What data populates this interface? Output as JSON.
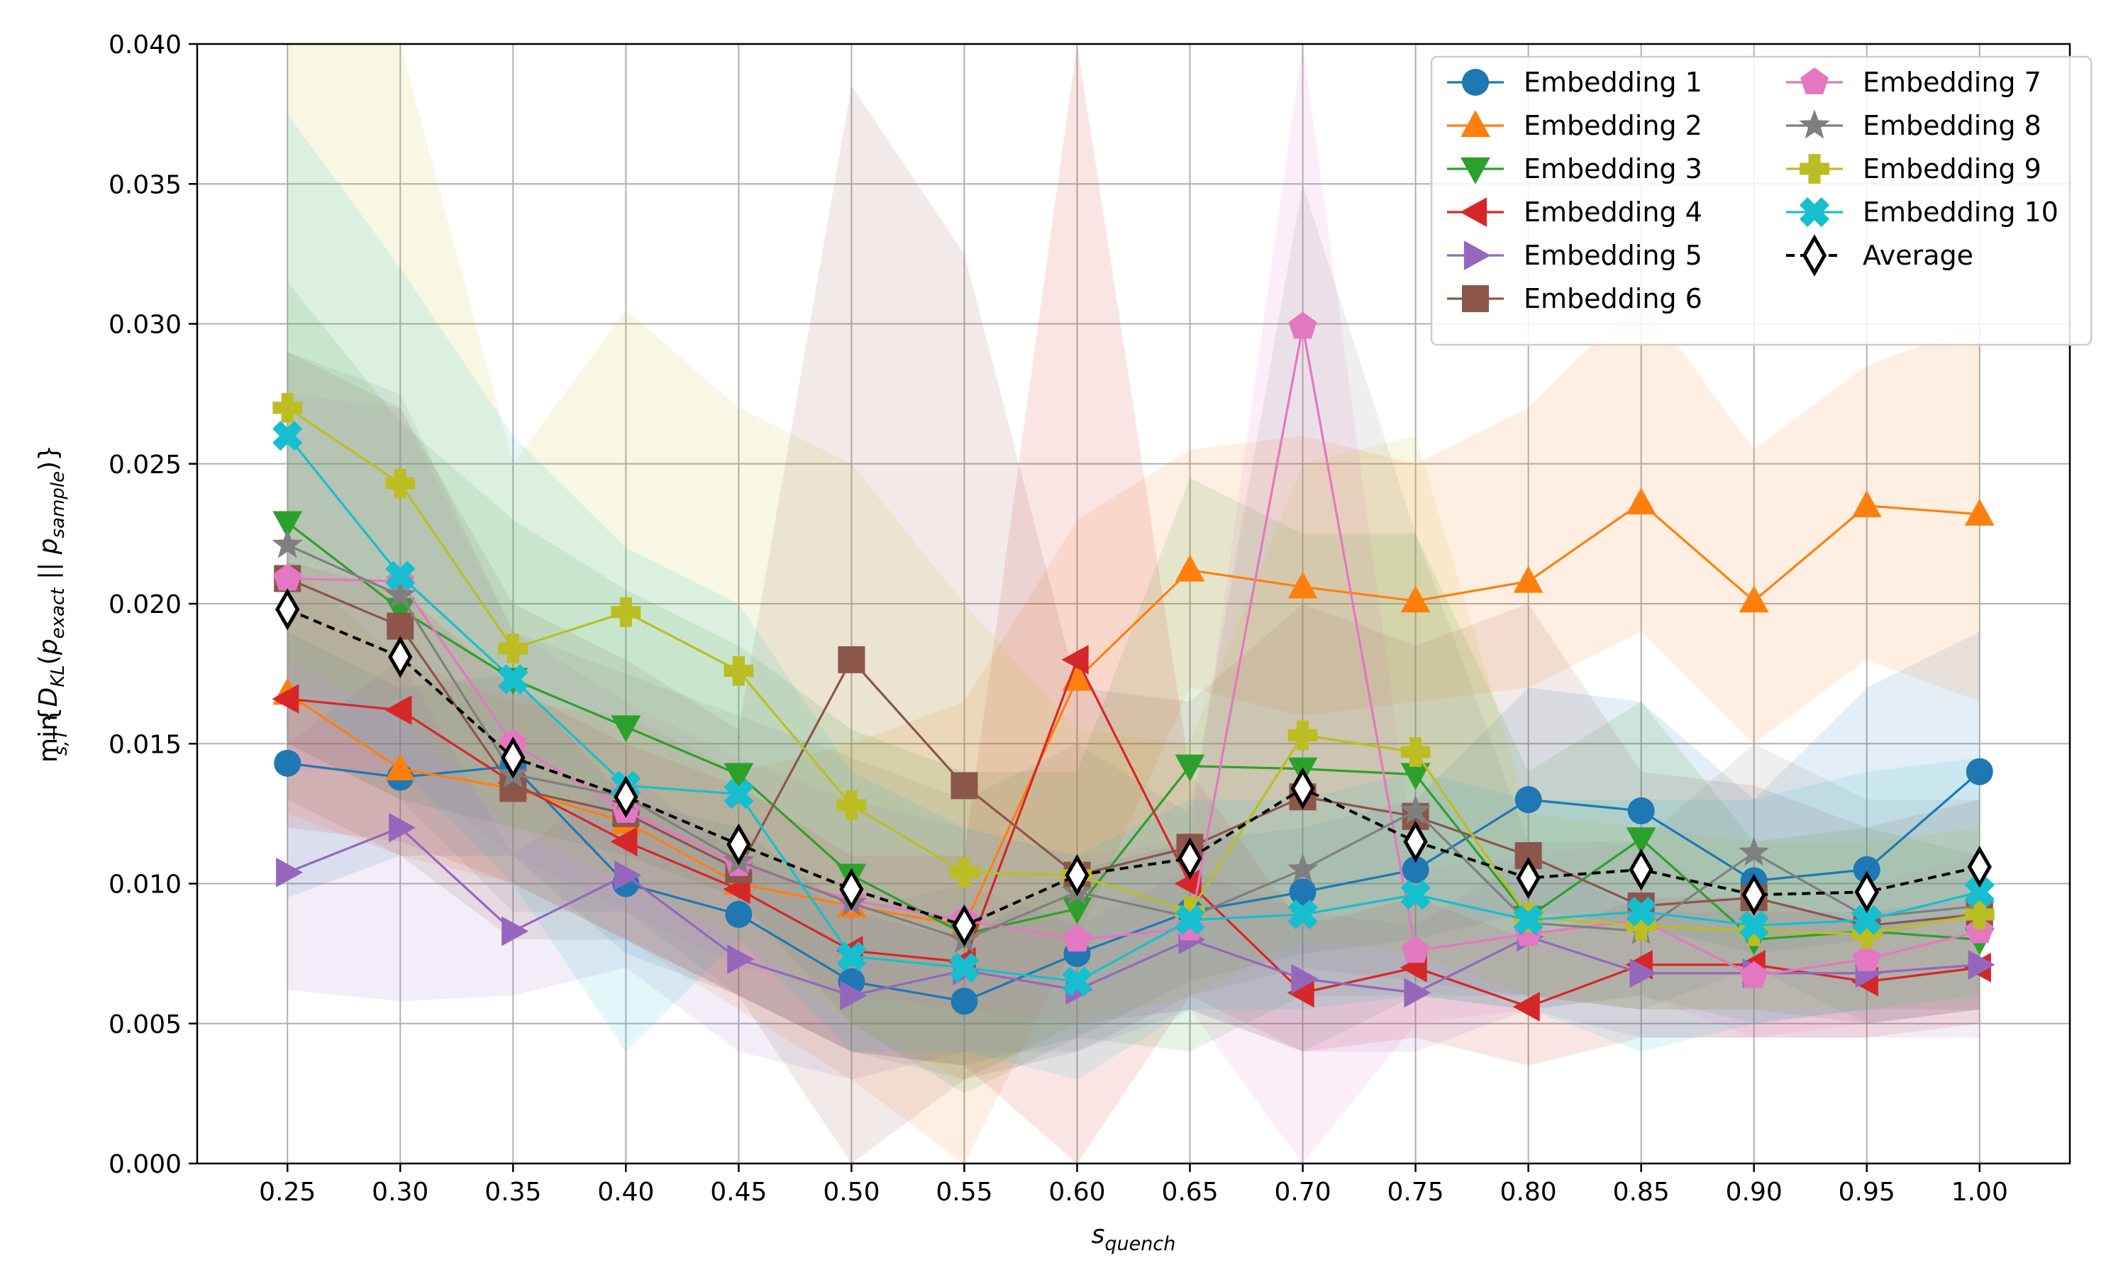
{
  "chart_data": {
    "type": "line",
    "xlabel": "s_quench",
    "ylabel": "min_{s,T}{D_KL(p_exact || p_sample)}",
    "x": [
      0.25,
      0.3,
      0.35,
      0.4,
      0.45,
      0.5,
      0.55,
      0.6,
      0.65,
      0.7,
      0.75,
      0.8,
      0.85,
      0.9,
      0.95,
      1.0
    ],
    "x_tick_labels": [
      "0.25",
      "0.30",
      "0.35",
      "0.40",
      "0.45",
      "0.50",
      "0.55",
      "0.60",
      "0.65",
      "0.70",
      "0.75",
      "0.80",
      "0.85",
      "0.90",
      "0.95",
      "1.00"
    ],
    "y_ticks": [
      0.0,
      0.005,
      0.01,
      0.015,
      0.02,
      0.025,
      0.03,
      0.035,
      0.04
    ],
    "y_tick_labels": [
      "0.000",
      "0.005",
      "0.010",
      "0.015",
      "0.020",
      "0.025",
      "0.030",
      "0.035",
      "0.040"
    ],
    "xlim": [
      0.21,
      1.04
    ],
    "ylim": [
      0.0,
      0.04
    ],
    "grid": true,
    "legend_position": "top-right",
    "legend_columns": 2,
    "series": [
      {
        "name": "Embedding 1",
        "color": "#1f77b4",
        "marker": "circle",
        "values": [
          0.0143,
          0.0138,
          0.0142,
          0.01,
          0.0089,
          0.0065,
          0.0058,
          0.0075,
          0.009,
          0.0097,
          0.0105,
          0.013,
          0.0126,
          0.0101,
          0.0105,
          0.014
        ],
        "lower": [
          0.0095,
          0.011,
          0.011,
          0.0075,
          0.006,
          0.004,
          0.0035,
          0.0045,
          0.0065,
          0.0075,
          0.008,
          0.009,
          0.0085,
          0.0075,
          0.008,
          0.009
        ],
        "upper": [
          0.019,
          0.017,
          0.0175,
          0.013,
          0.012,
          0.009,
          0.008,
          0.0105,
          0.0115,
          0.012,
          0.013,
          0.017,
          0.0165,
          0.013,
          0.017,
          0.019
        ]
      },
      {
        "name": "Embedding 2",
        "color": "#ff7f0e",
        "marker": "triangle-up",
        "values": [
          0.0168,
          0.0141,
          0.0134,
          0.0122,
          0.01,
          0.0092,
          0.0085,
          0.0173,
          0.0212,
          0.0206,
          0.0201,
          0.0208,
          0.0236,
          0.0201,
          0.0235,
          0.0232
        ],
        "lower": [
          0.0125,
          0.011,
          0.01,
          0.008,
          0.0055,
          0.003,
          0.0,
          0.008,
          0.017,
          0.016,
          0.0165,
          0.017,
          0.019,
          0.015,
          0.018,
          0.0165
        ],
        "upper": [
          0.0215,
          0.018,
          0.0165,
          0.016,
          0.014,
          0.015,
          0.0165,
          0.023,
          0.0255,
          0.026,
          0.025,
          0.027,
          0.031,
          0.0255,
          0.0285,
          0.03
        ]
      },
      {
        "name": "Embedding 3",
        "color": "#2ca02c",
        "marker": "triangle-down",
        "values": [
          0.0229,
          0.0198,
          0.0173,
          0.0156,
          0.0139,
          0.0103,
          0.0082,
          0.0091,
          0.0142,
          0.0141,
          0.0139,
          0.0088,
          0.0116,
          0.008,
          0.0083,
          0.008
        ],
        "lower": [
          0.015,
          0.013,
          0.012,
          0.011,
          0.0095,
          0.005,
          0.0025,
          0.0045,
          0.004,
          0.006,
          0.006,
          0.0055,
          0.006,
          0.005,
          0.0055,
          0.0055
        ],
        "upper": [
          0.0315,
          0.0265,
          0.023,
          0.0205,
          0.0185,
          0.0155,
          0.014,
          0.014,
          0.0245,
          0.0225,
          0.0225,
          0.014,
          0.0165,
          0.0115,
          0.012,
          0.011
        ]
      },
      {
        "name": "Embedding 4",
        "color": "#d62728",
        "marker": "triangle-left",
        "values": [
          0.0166,
          0.0162,
          0.0136,
          0.0115,
          0.0098,
          0.0076,
          0.0072,
          0.018,
          0.01,
          0.0061,
          0.007,
          0.0056,
          0.0071,
          0.0071,
          0.0065,
          0.007
        ],
        "lower": [
          0.012,
          0.0115,
          0.01,
          0.008,
          0.006,
          0.004,
          0.0035,
          0.0,
          0.006,
          0.004,
          0.0045,
          0.0035,
          0.0045,
          0.0045,
          0.0045,
          0.005
        ],
        "upper": [
          0.0215,
          0.0205,
          0.017,
          0.015,
          0.0135,
          0.011,
          0.011,
          0.04,
          0.014,
          0.0085,
          0.0095,
          0.008,
          0.0095,
          0.0095,
          0.0085,
          0.009
        ]
      },
      {
        "name": "Embedding 5",
        "color": "#9467bd",
        "marker": "triangle-right",
        "values": [
          0.0104,
          0.012,
          0.0083,
          0.0103,
          0.0073,
          0.006,
          0.0069,
          0.0062,
          0.008,
          0.0066,
          0.0061,
          0.0081,
          0.0068,
          0.0068,
          0.0068,
          0.0071
        ],
        "lower": [
          0.0062,
          0.0058,
          0.006,
          0.007,
          0.004,
          0.003,
          0.004,
          0.004,
          0.0055,
          0.004,
          0.004,
          0.0055,
          0.0045,
          0.0045,
          0.0045,
          0.0045
        ],
        "upper": [
          0.015,
          0.018,
          0.011,
          0.014,
          0.011,
          0.009,
          0.01,
          0.0085,
          0.0105,
          0.009,
          0.0085,
          0.011,
          0.009,
          0.009,
          0.009,
          0.0095
        ]
      },
      {
        "name": "Embedding 6",
        "color": "#8c564b",
        "marker": "square",
        "values": [
          0.0209,
          0.0192,
          0.0134,
          0.0125,
          0.0105,
          0.018,
          0.0135,
          0.0103,
          0.0113,
          0.0131,
          0.0124,
          0.011,
          0.0092,
          0.0095,
          0.0085,
          0.0089
        ],
        "lower": [
          0.013,
          0.011,
          0.008,
          0.008,
          0.006,
          0.0,
          0.003,
          0.004,
          0.006,
          0.007,
          0.0065,
          0.006,
          0.0055,
          0.0055,
          0.005,
          0.0055
        ],
        "upper": [
          0.029,
          0.027,
          0.02,
          0.018,
          0.0155,
          0.0385,
          0.0325,
          0.017,
          0.0165,
          0.02,
          0.0185,
          0.02,
          0.014,
          0.0135,
          0.012,
          0.013
        ]
      },
      {
        "name": "Embedding 7",
        "color": "#e377c2",
        "marker": "pentagon",
        "values": [
          0.0209,
          0.0208,
          0.015,
          0.0126,
          0.0107,
          0.0094,
          0.0087,
          0.008,
          0.0084,
          0.0299,
          0.0076,
          0.0082,
          0.0087,
          0.0067,
          0.0073,
          0.0083
        ],
        "lower": [
          0.014,
          0.014,
          0.011,
          0.009,
          0.007,
          0.006,
          0.0055,
          0.005,
          0.0055,
          0.0,
          0.005,
          0.0055,
          0.006,
          0.0045,
          0.005,
          0.0055
        ],
        "upper": [
          0.0275,
          0.027,
          0.019,
          0.0165,
          0.0145,
          0.013,
          0.012,
          0.011,
          0.0115,
          0.04,
          0.0105,
          0.011,
          0.0115,
          0.009,
          0.01,
          0.011
        ]
      },
      {
        "name": "Embedding 8",
        "color": "#7f7f7f",
        "marker": "star",
        "values": [
          0.0221,
          0.0203,
          0.0139,
          0.0131,
          0.0108,
          0.0093,
          0.008,
          0.0097,
          0.0088,
          0.0105,
          0.0126,
          0.0086,
          0.0083,
          0.0111,
          0.0088,
          0.0092
        ],
        "lower": [
          0.015,
          0.013,
          0.009,
          0.009,
          0.006,
          0.004,
          0.003,
          0.005,
          0.0055,
          0.004,
          0.006,
          0.006,
          0.0055,
          0.007,
          0.005,
          0.0055
        ],
        "upper": [
          0.029,
          0.0275,
          0.019,
          0.0175,
          0.016,
          0.0145,
          0.013,
          0.015,
          0.0125,
          0.035,
          0.0225,
          0.0115,
          0.0115,
          0.015,
          0.013,
          0.013
        ]
      },
      {
        "name": "Embedding 9",
        "color": "#bcbd22",
        "marker": "plus",
        "values": [
          0.027,
          0.0243,
          0.0184,
          0.0197,
          0.0176,
          0.0128,
          0.0104,
          0.0103,
          0.009,
          0.0153,
          0.0147,
          0.0088,
          0.0085,
          0.0083,
          0.0082,
          0.0089
        ],
        "lower": [
          0.018,
          0.016,
          0.012,
          0.01,
          0.008,
          0.005,
          0.003,
          0.005,
          0.006,
          0.008,
          0.0075,
          0.006,
          0.0055,
          0.0055,
          0.0055,
          0.006
        ],
        "upper": [
          0.04,
          0.04,
          0.025,
          0.0305,
          0.027,
          0.025,
          0.02,
          0.0155,
          0.015,
          0.025,
          0.026,
          0.0125,
          0.012,
          0.0115,
          0.0115,
          0.012
        ]
      },
      {
        "name": "Embedding 10",
        "color": "#17becf",
        "marker": "x",
        "values": [
          0.026,
          0.021,
          0.0173,
          0.0135,
          0.0132,
          0.0074,
          0.007,
          0.0065,
          0.0087,
          0.0089,
          0.0096,
          0.0087,
          0.009,
          0.0085,
          0.0087,
          0.0097
        ],
        "lower": [
          0.017,
          0.014,
          0.01,
          0.004,
          0.008,
          0.004,
          0.004,
          0.003,
          0.0055,
          0.0055,
          0.006,
          0.0055,
          0.004,
          0.005,
          0.0055,
          0.006
        ],
        "upper": [
          0.0375,
          0.032,
          0.026,
          0.022,
          0.02,
          0.014,
          0.012,
          0.011,
          0.013,
          0.013,
          0.014,
          0.013,
          0.013,
          0.013,
          0.014,
          0.0145
        ]
      },
      {
        "name": "Average",
        "color": "#000000",
        "marker": "diamond-open",
        "dashed": true,
        "values": [
          0.0198,
          0.0181,
          0.0145,
          0.0131,
          0.0114,
          0.0098,
          0.0085,
          0.0103,
          0.0109,
          0.0134,
          0.0115,
          0.0102,
          0.0105,
          0.0096,
          0.0097,
          0.0106
        ]
      }
    ]
  }
}
